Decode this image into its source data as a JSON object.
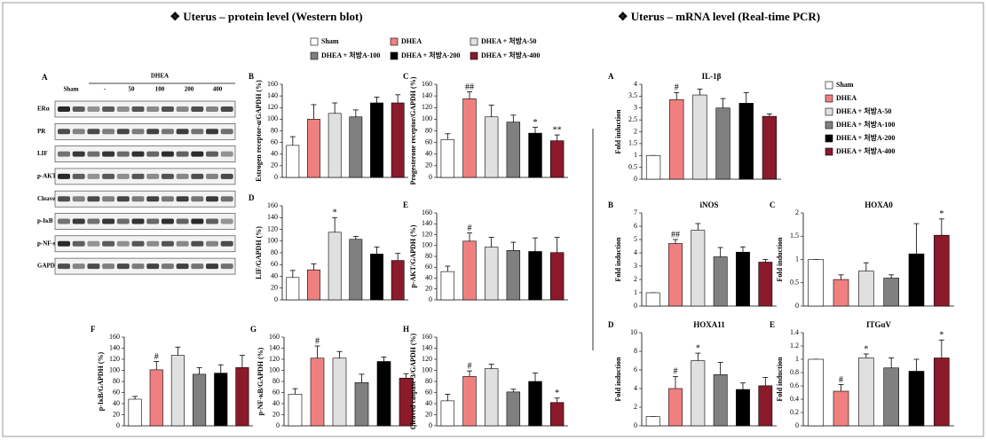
{
  "sections": [
    "❖  Uterus – protein level (Western blot)",
    "❖  Uterus – mRNA level (Real-time PCR)"
  ],
  "groups": [
    {
      "name": "Sham",
      "color": "#ffffff"
    },
    {
      "name": "DHEA",
      "color": "#f08080"
    },
    {
      "name": "DHEA + 처방A-50",
      "color": "#e0e0e0"
    },
    {
      "name": "DHEA + 처방A-100",
      "color": "#808080"
    },
    {
      "name": "DHEA + 처방A-200",
      "color": "#000000"
    },
    {
      "name": "DHEA + 처방A-400",
      "color": "#8b1a2b"
    }
  ],
  "blot": {
    "panel": "A",
    "treatment": "DHEA",
    "columns": [
      "Sham",
      "-",
      "50",
      "100",
      "200",
      "400"
    ],
    "rows": [
      "ERα",
      "PR",
      "LIF",
      "p-AKT",
      "Cleaved caspase-3",
      "p-IκB",
      "p-NF-κB",
      "GAPDH"
    ]
  },
  "chart_data": [
    {
      "type": "bar",
      "panel": "B",
      "ylabel": "Estrogen receptor-α/GAPDH (%)",
      "values": [
        55,
        100,
        110,
        104,
        128,
        128
      ],
      "errors": [
        15,
        25,
        18,
        12,
        10,
        14
      ],
      "sig": [
        null,
        null,
        null,
        null,
        null,
        null
      ],
      "ylim": [
        0,
        160
      ],
      "yticks": [
        0,
        20,
        40,
        60,
        80,
        100,
        120,
        140,
        160
      ]
    },
    {
      "type": "bar",
      "panel": "C",
      "ylabel": "Progesterone receptor/GAPDH (%)",
      "values": [
        65,
        135,
        104,
        95,
        76,
        63
      ],
      "errors": [
        10,
        12,
        20,
        12,
        10,
        10
      ],
      "sig": [
        null,
        "##",
        null,
        null,
        "*",
        "**"
      ],
      "ylim": [
        0,
        160
      ],
      "yticks": [
        0,
        20,
        40,
        60,
        80,
        100,
        120,
        140,
        160
      ]
    },
    {
      "type": "bar",
      "panel": "D",
      "ylabel": "LIF/GAPDH (%)",
      "values": [
        38,
        51,
        115,
        103,
        78,
        67
      ],
      "errors": [
        12,
        10,
        25,
        5,
        12,
        12
      ],
      "sig": [
        null,
        null,
        "*",
        null,
        null,
        null
      ],
      "ylim": [
        0,
        160
      ],
      "yticks": [
        0,
        20,
        40,
        60,
        80,
        100,
        120,
        140,
        160
      ]
    },
    {
      "type": "bar",
      "panel": "E",
      "ylabel": "p-AKT/GAPDH (%)",
      "values": [
        52,
        108,
        97,
        91,
        89,
        87
      ],
      "errors": [
        10,
        15,
        18,
        15,
        25,
        28
      ],
      "sig": [
        null,
        "#",
        null,
        null,
        null,
        null
      ],
      "ylim": [
        0,
        160
      ],
      "yticks": [
        0,
        20,
        40,
        60,
        80,
        100,
        120,
        140,
        160
      ]
    },
    {
      "type": "bar",
      "panel": "F",
      "ylabel": "p-IκB/GAPDH (%)",
      "values": [
        48,
        101,
        127,
        93,
        95,
        105
      ],
      "errors": [
        5,
        15,
        15,
        12,
        15,
        22
      ],
      "sig": [
        null,
        "#",
        null,
        null,
        null,
        null
      ],
      "ylim": [
        0,
        160
      ],
      "yticks": [
        0,
        20,
        40,
        60,
        80,
        100,
        120,
        140,
        160
      ]
    },
    {
      "type": "bar",
      "panel": "G",
      "ylabel": "p-NF-κB/GAPDH (%)",
      "values": [
        57,
        122,
        122,
        78,
        116,
        86
      ],
      "errors": [
        10,
        22,
        12,
        15,
        8,
        8
      ],
      "sig": [
        null,
        "#",
        null,
        null,
        null,
        null
      ],
      "ylim": [
        0,
        160
      ],
      "yticks": [
        0,
        20,
        40,
        60,
        80,
        100,
        120,
        140,
        160
      ]
    },
    {
      "type": "bar",
      "panel": "H",
      "ylabel": "Cleaved caspase-3/GAPDH (%)",
      "values": [
        45,
        89,
        103,
        61,
        80,
        42
      ],
      "errors": [
        12,
        10,
        8,
        5,
        15,
        8
      ],
      "sig": [
        null,
        "#",
        null,
        null,
        null,
        "*"
      ],
      "ylim": [
        0,
        160
      ],
      "yticks": [
        0,
        20,
        40,
        60,
        80,
        100,
        120,
        140,
        160
      ]
    },
    {
      "type": "bar",
      "panel": "A",
      "title": "IL-1β",
      "ylabel": "Fold induction",
      "values": [
        1,
        3.35,
        3.55,
        3.0,
        3.2,
        2.65
      ],
      "errors": [
        0,
        0.3,
        0.25,
        0.4,
        0.45,
        0.1
      ],
      "sig": [
        null,
        "#",
        null,
        null,
        null,
        null
      ],
      "ylim": [
        0,
        4
      ],
      "yticks": [
        0,
        0.5,
        1,
        1.5,
        2,
        2.5,
        3,
        3.5,
        4
      ]
    },
    {
      "type": "bar",
      "panel": "B",
      "title": "iNOS",
      "ylabel": "Fold induction",
      "values": [
        1,
        4.7,
        5.7,
        3.7,
        4.05,
        3.3
      ],
      "errors": [
        0,
        0.3,
        0.5,
        0.7,
        0.4,
        0.2
      ],
      "sig": [
        null,
        "##",
        null,
        null,
        null,
        null
      ],
      "ylim": [
        0,
        7
      ],
      "yticks": [
        0,
        1,
        2,
        3,
        4,
        5,
        6,
        7
      ]
    },
    {
      "type": "bar",
      "panel": "C",
      "title": "HOXA0",
      "ylabel": "Fold induction",
      "values": [
        1,
        0.57,
        0.75,
        0.6,
        1.12,
        1.52
      ],
      "errors": [
        0,
        0.1,
        0.18,
        0.07,
        0.65,
        0.35
      ],
      "sig": [
        null,
        null,
        null,
        null,
        null,
        "*"
      ],
      "ylim": [
        0,
        2
      ],
      "yticks": [
        0,
        0.5,
        1,
        1.5,
        2
      ]
    },
    {
      "type": "bar",
      "panel": "D",
      "title": "HOXA11",
      "ylabel": "Fold induction",
      "values": [
        1,
        4,
        7,
        5.5,
        3.9,
        4.3
      ],
      "errors": [
        0,
        1.3,
        0.8,
        1.3,
        0.7,
        0.9
      ],
      "sig": [
        null,
        "#",
        "*",
        null,
        null,
        null
      ],
      "ylim": [
        0,
        10
      ],
      "yticks": [
        0,
        2,
        4,
        6,
        8,
        10
      ]
    },
    {
      "type": "bar",
      "panel": "E",
      "title": "ITGαV",
      "ylabel": "Fold induction",
      "values": [
        1,
        0.52,
        1.02,
        0.87,
        0.82,
        1.02
      ],
      "errors": [
        0,
        0.1,
        0.06,
        0.15,
        0.18,
        0.27
      ],
      "sig": [
        null,
        "#",
        "*",
        null,
        null,
        "*"
      ],
      "ylim": [
        0,
        1.4
      ],
      "yticks": [
        0,
        0.2,
        0.4,
        0.6,
        0.8,
        1,
        1.2,
        1.4
      ]
    }
  ]
}
